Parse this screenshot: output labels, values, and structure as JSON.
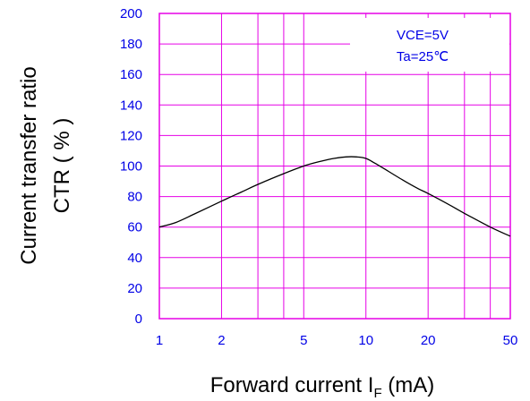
{
  "chart_data": {
    "type": "line",
    "xscale": "log",
    "xlim": [
      1,
      50
    ],
    "ylim": [
      0,
      200
    ],
    "grid": true,
    "legend": "none",
    "x_ticks": [
      1,
      2,
      5,
      10,
      20,
      50
    ],
    "x_tick_labels": [
      "1",
      "2",
      "5",
      "10",
      "20",
      "50"
    ],
    "x_grid": [
      1,
      2,
      3,
      4,
      5,
      10,
      20,
      30,
      40,
      50
    ],
    "y_ticks": [
      0,
      20,
      40,
      60,
      80,
      100,
      120,
      140,
      160,
      180,
      200
    ],
    "y_tick_labels": [
      "0",
      "20",
      "40",
      "60",
      "80",
      "100",
      "120",
      "140",
      "160",
      "180",
      "200"
    ],
    "xlabel": {
      "main": "Forward current I",
      "subscript": "F",
      "unit": " (mA)"
    },
    "ylabel": [
      "Current transfer ratio",
      "CTR ( % )"
    ],
    "annotations": [
      "VCE=5V",
      "Ta=25℃"
    ],
    "series": [
      {
        "x": [
          1,
          1.2,
          1.5,
          2,
          2.5,
          3,
          4,
          5,
          6,
          7,
          8,
          9,
          10,
          11,
          12,
          15,
          18,
          20,
          25,
          30,
          40,
          50
        ],
        "y": [
          60,
          63,
          69,
          77,
          83,
          88,
          95,
          100,
          103,
          105,
          106,
          106,
          105,
          102,
          99,
          91,
          85,
          82,
          75,
          69,
          60,
          54
        ]
      }
    ],
    "colors": {
      "grid": "#e600e6",
      "ticks": "#0000e6",
      "line": "#000000",
      "titles": "#000000"
    }
  }
}
